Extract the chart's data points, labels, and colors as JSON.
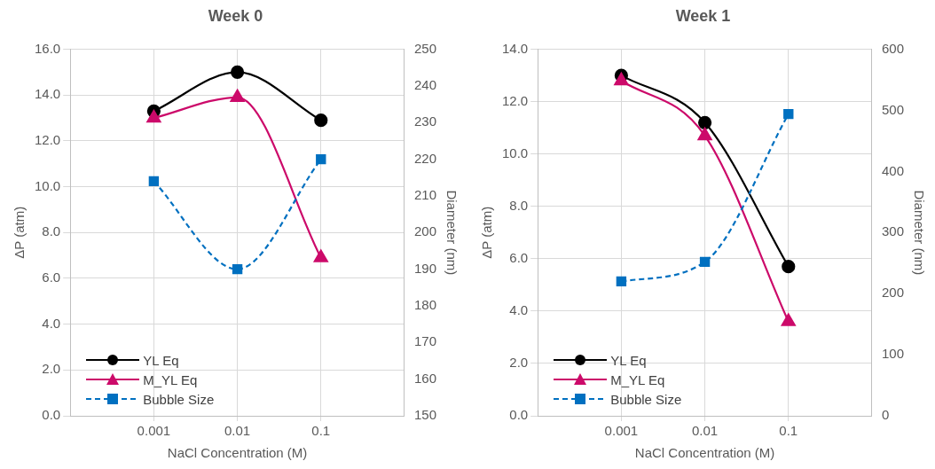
{
  "chart_data": [
    {
      "type": "line",
      "title": "Week 0",
      "xlabel": "NaCl Concentration (M)",
      "ylabel": "ΔP (atm)",
      "y2label": "Diameter (nm)",
      "categories": [
        "0.001",
        "0.01",
        "0.1"
      ],
      "series": [
        {
          "name": "YL Eq",
          "color": "#000000",
          "marker": "circle",
          "line_style": "solid",
          "values": [
            13.3,
            15.0,
            12.9
          ]
        },
        {
          "name": "M_YL Eq",
          "color": "#cc0a6a",
          "marker": "triangle",
          "line_style": "solid",
          "values": [
            13.0,
            13.9,
            6.9
          ]
        },
        {
          "name": "Bubble Size",
          "color": "#0070c0",
          "marker": "square",
          "line_style": "dashed",
          "axis": "y2",
          "values": [
            214,
            190,
            220
          ]
        }
      ],
      "ylim": [
        0,
        16
      ],
      "yticks": [
        {
          "value": 0,
          "label": "0.0"
        },
        {
          "value": 2,
          "label": "2.0"
        },
        {
          "value": 4,
          "label": "4.0"
        },
        {
          "value": 6,
          "label": "6.0"
        },
        {
          "value": 8,
          "label": "8.0"
        },
        {
          "value": 10,
          "label": "10.0"
        },
        {
          "value": 12,
          "label": "12.0"
        },
        {
          "value": 14,
          "label": "14.0"
        },
        {
          "value": 16,
          "label": "16.0"
        }
      ],
      "y2lim": [
        150,
        250
      ],
      "y2ticks": [
        150,
        160,
        170,
        180,
        190,
        200,
        210,
        220,
        230,
        240,
        250
      ],
      "grid": true,
      "legend": "bottom left"
    },
    {
      "type": "line",
      "title": "Week 1",
      "xlabel": "NaCl Concentration (M)",
      "ylabel": "ΔP (atm)",
      "y2label": "Diameter (nm)",
      "categories": [
        "0.001",
        "0.01",
        "0.1"
      ],
      "series": [
        {
          "name": "YL Eq",
          "color": "#000000",
          "marker": "circle",
          "line_style": "solid",
          "values": [
            13.0,
            11.2,
            5.7
          ]
        },
        {
          "name": "M_YL Eq",
          "color": "#cc0a6a",
          "marker": "triangle",
          "line_style": "solid",
          "values": [
            12.8,
            10.7,
            3.6
          ]
        },
        {
          "name": "Bubble Size",
          "color": "#0070c0",
          "marker": "square",
          "line_style": "dashed",
          "axis": "y2",
          "values": [
            220,
            252,
            494
          ]
        }
      ],
      "ylim": [
        0,
        14
      ],
      "yticks": [
        {
          "value": 0,
          "label": "0.0"
        },
        {
          "value": 2,
          "label": "2.0"
        },
        {
          "value": 4,
          "label": "4.0"
        },
        {
          "value": 6,
          "label": "6.0"
        },
        {
          "value": 8,
          "label": "8.0"
        },
        {
          "value": 10,
          "label": "10.0"
        },
        {
          "value": 12,
          "label": "12.0"
        },
        {
          "value": 14,
          "label": "14.0"
        }
      ],
      "y2lim": [
        0,
        600
      ],
      "y2ticks": [
        0,
        100,
        200,
        300,
        400,
        500,
        600
      ],
      "grid": true,
      "legend": "bottom left"
    }
  ]
}
